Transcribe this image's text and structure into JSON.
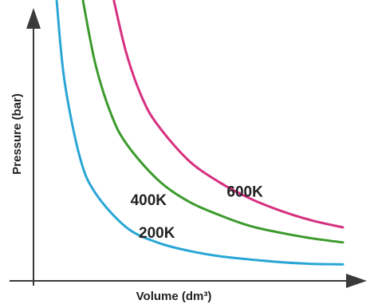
{
  "chart_data": {
    "type": "line",
    "title": "",
    "xlabel": "Volume (dm³)",
    "ylabel": "Pressure (bar)",
    "grid": false,
    "legend": "none",
    "xlim": [
      0,
      10
    ],
    "ylim": [
      0,
      10
    ],
    "series": [
      {
        "name": "200K",
        "color": "#29a6d6",
        "x": [
          0.75,
          1,
          1.5,
          2,
          3,
          4,
          5,
          6,
          7,
          8,
          9,
          10
        ],
        "values": [
          10.2,
          7.3,
          4.5,
          3.2,
          1.95,
          1.4,
          1.1,
          0.9,
          0.78,
          0.68,
          0.62,
          0.6
        ]
      },
      {
        "name": "400K",
        "color": "#3c9a2c",
        "x": [
          1.6,
          2,
          2.5,
          3,
          4,
          5,
          6,
          7,
          8,
          9,
          10
        ],
        "values": [
          10.2,
          7.9,
          6.1,
          5.0,
          3.7,
          2.9,
          2.4,
          2.0,
          1.75,
          1.55,
          1.4
        ]
      },
      {
        "name": "600K",
        "color": "#d62f7f",
        "x": [
          2.6,
          3,
          3.5,
          4,
          5,
          6,
          7,
          8,
          9,
          10
        ],
        "values": [
          10.2,
          8.3,
          6.7,
          5.7,
          4.4,
          3.6,
          3.0,
          2.55,
          2.2,
          1.95
        ]
      }
    ]
  }
}
